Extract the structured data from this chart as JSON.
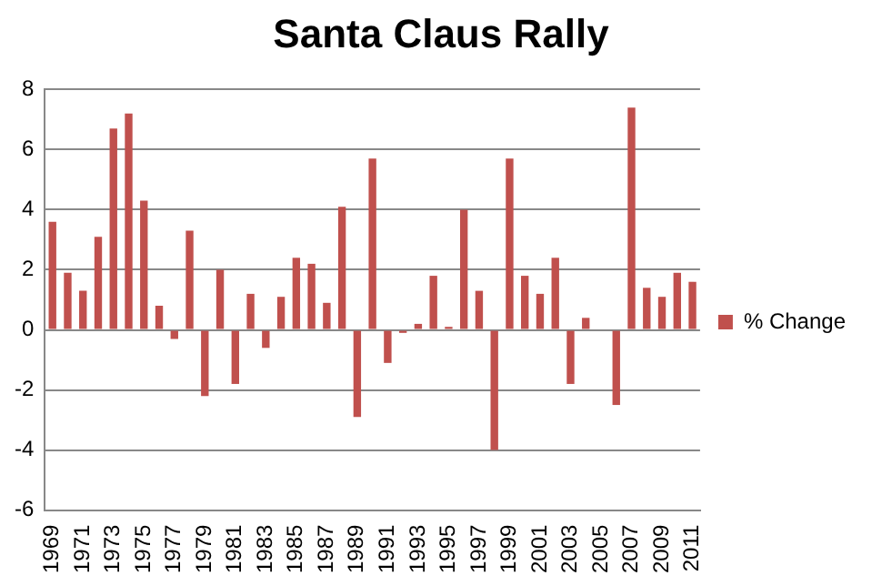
{
  "chart_data": {
    "type": "bar",
    "title": "Santa Claus Rally",
    "categories": [
      "1969",
      null,
      "1971",
      null,
      "1973",
      null,
      "1975",
      null,
      "1977",
      null,
      "1979",
      null,
      "1981",
      null,
      "1983",
      null,
      "1985",
      null,
      "1987",
      null,
      "1989",
      null,
      "1991",
      null,
      "1993",
      null,
      "1995",
      null,
      "1997",
      null,
      "1999",
      null,
      "2001",
      null,
      "2003",
      null,
      "2005",
      null,
      "2007",
      null,
      "2009",
      null,
      "2011"
    ],
    "series": [
      {
        "name": "% Change",
        "color": "#c0504d",
        "values": [
          3.6,
          1.9,
          1.3,
          3.1,
          6.7,
          7.2,
          4.3,
          0.8,
          -0.3,
          3.3,
          -2.2,
          2.0,
          -1.8,
          1.2,
          -0.6,
          1.1,
          2.4,
          2.2,
          0.9,
          4.1,
          -2.9,
          5.7,
          -1.1,
          -0.1,
          0.2,
          1.8,
          0.1,
          4.0,
          1.3,
          -4.0,
          5.7,
          1.8,
          1.2,
          2.4,
          -1.8,
          0.4,
          0.0,
          -2.5,
          7.4,
          1.4,
          1.1,
          1.9,
          1.6
        ]
      }
    ],
    "ylim": [
      -6,
      8
    ],
    "yticks": [
      -6,
      -4,
      -2,
      0,
      2,
      4,
      6,
      8
    ],
    "grid": "y",
    "legend": "right"
  }
}
